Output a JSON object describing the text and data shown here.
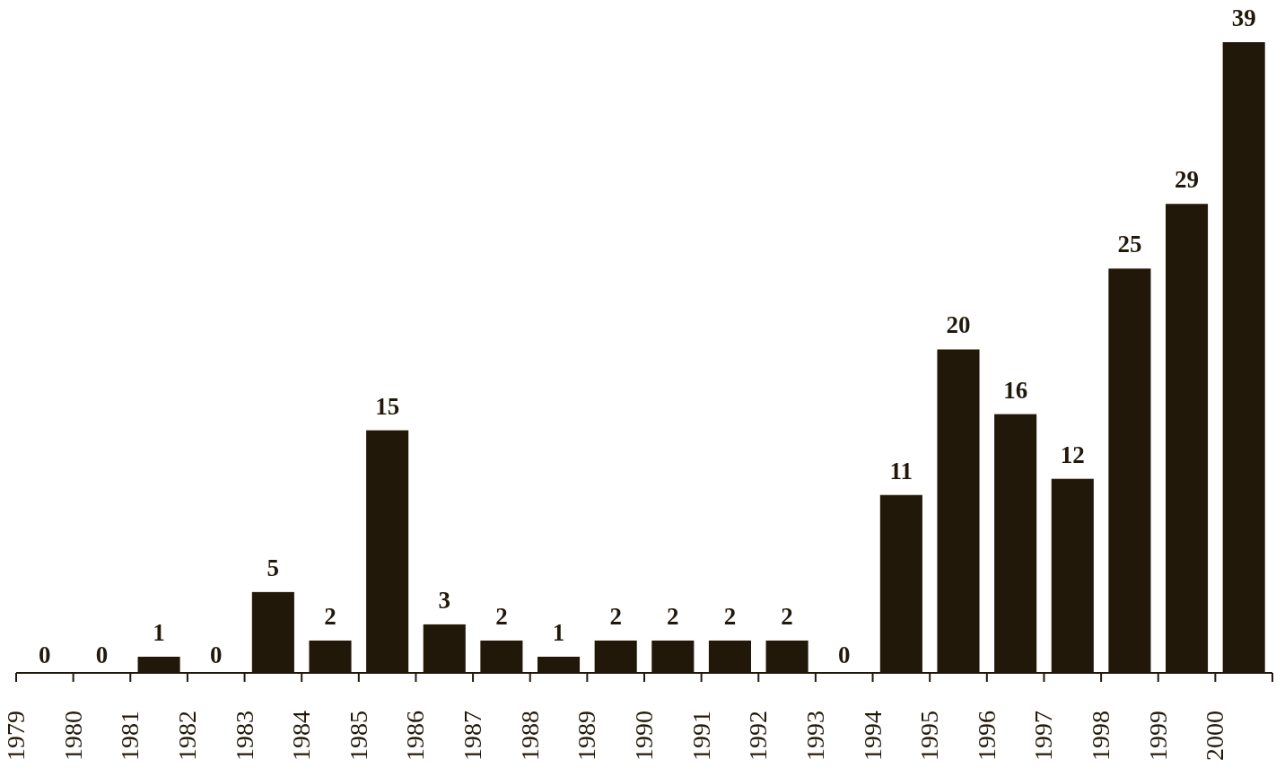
{
  "chart_data": {
    "type": "bar",
    "categories": [
      "1979",
      "1980",
      "1981",
      "1982",
      "1983",
      "1984",
      "1985",
      "1986",
      "1987",
      "1988",
      "1989",
      "1990",
      "1991",
      "1992",
      "1993",
      "1994",
      "1995",
      "1996",
      "1997",
      "1998",
      "1999",
      "2000"
    ],
    "values": [
      0,
      0,
      1,
      0,
      5,
      2,
      15,
      3,
      2,
      1,
      2,
      2,
      2,
      2,
      0,
      11,
      20,
      16,
      12,
      25,
      29,
      39
    ],
    "color": "#22180a",
    "data_labels": true
  }
}
